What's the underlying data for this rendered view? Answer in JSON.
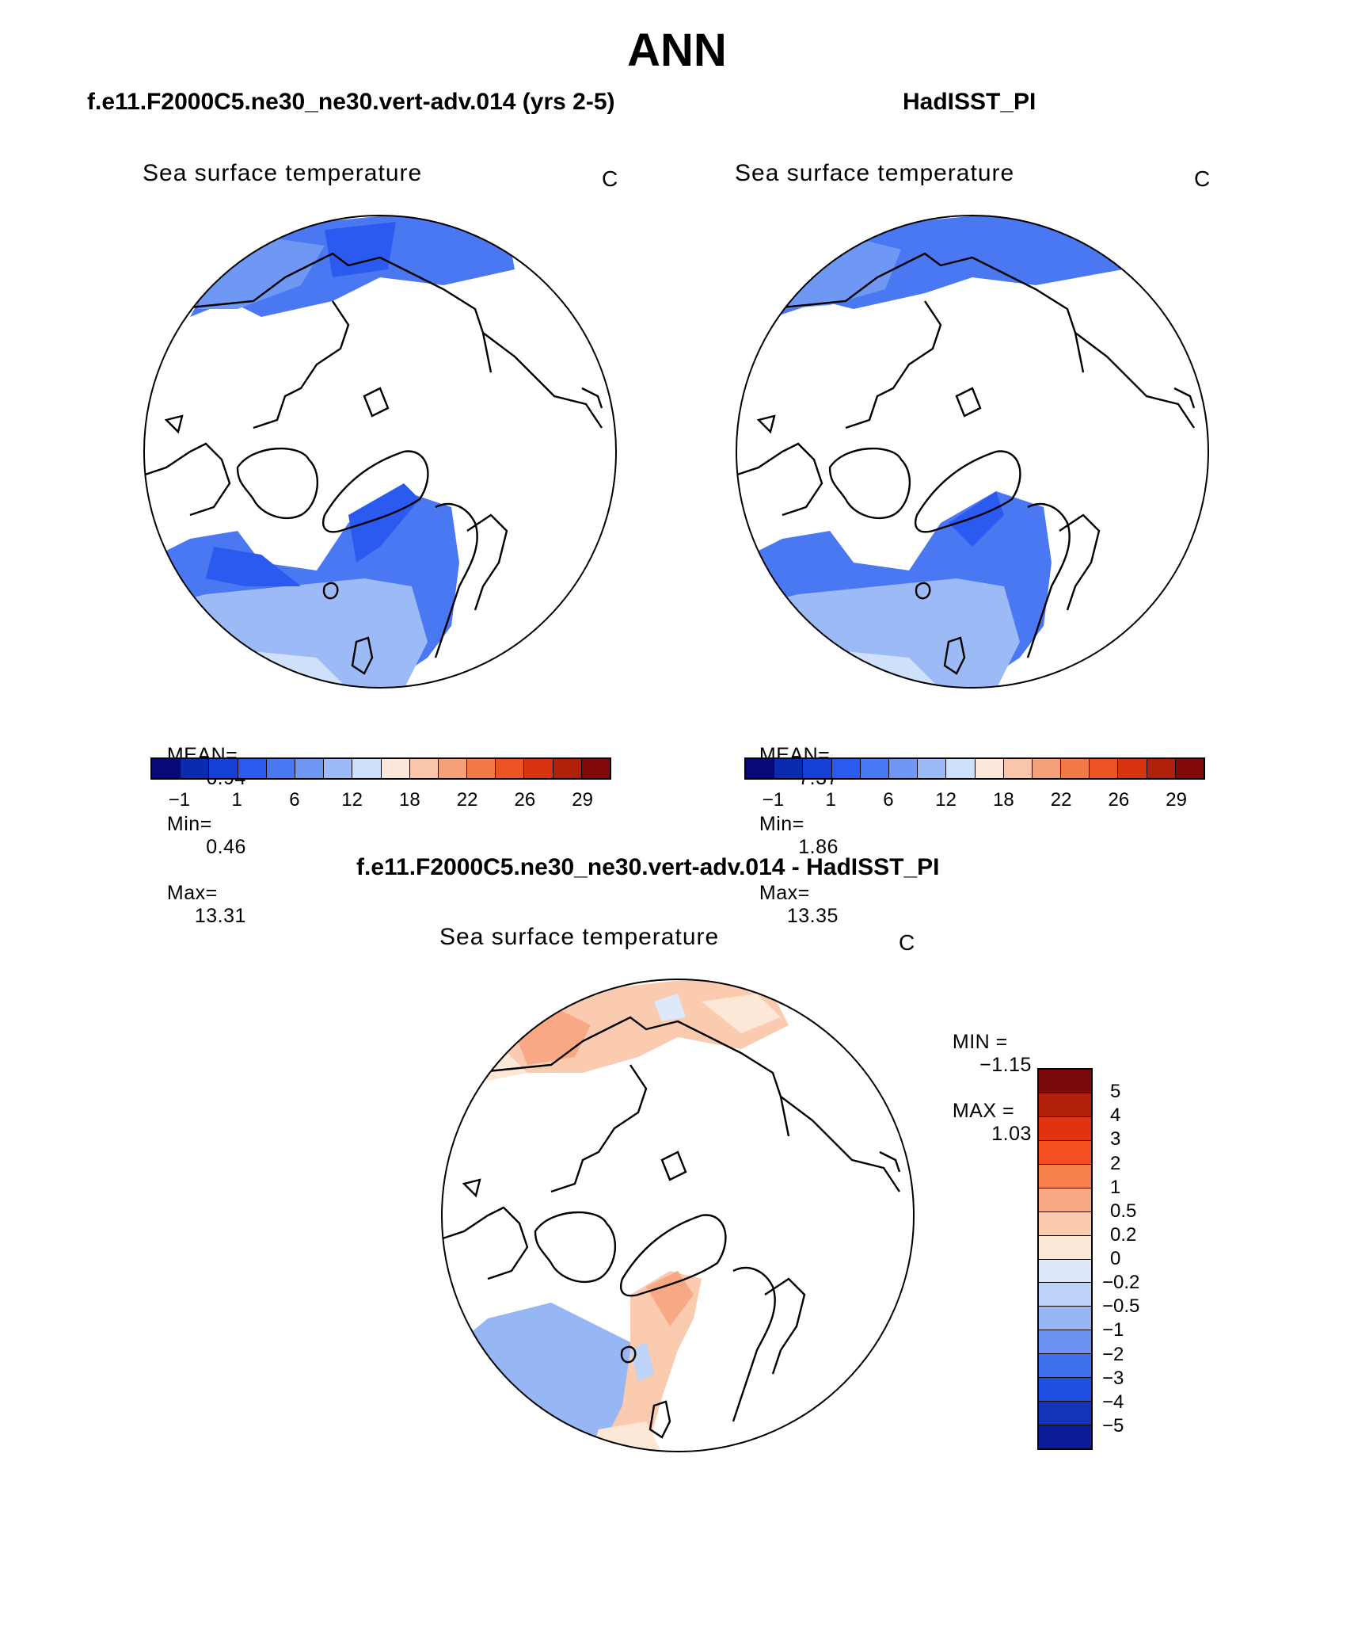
{
  "title": "ANN",
  "panels": [
    {
      "subtitle": "f.e11.F2000C5.ne30_ne30.vert-adv.014 (yrs 2-5)",
      "variable": "Sea surface temperature",
      "units": "C",
      "mean_label": "MEAN=",
      "mean": "6.94",
      "min_label": "Min=",
      "min": "0.46",
      "max_label": "Max=",
      "max": "13.31"
    },
    {
      "subtitle": "HadISST_PI",
      "variable": "Sea surface temperature",
      "units": "C",
      "mean_label": "MEAN=",
      "mean": "7.37",
      "min_label": "Min=",
      "min": "1.86",
      "max_label": "Max=",
      "max": "13.35"
    }
  ],
  "diff_panel": {
    "subtitle": "f.e11.F2000C5.ne30_ne30.vert-adv.014 - HadISST_PI",
    "variable": "Sea surface temperature",
    "units": "C",
    "min_label": "MIN =",
    "min": "−1.15",
    "max_label": "MAX =",
    "max": "1.03"
  },
  "abs_colorbar": {
    "colors": [
      "#08087a",
      "#0a2ab0",
      "#1440d8",
      "#2a5af0",
      "#4a78f2",
      "#6e98f4",
      "#9cbaf6",
      "#cfe0fa",
      "#fde8dc",
      "#f9c6ac",
      "#f6a07a",
      "#f37a48",
      "#ec5424",
      "#d83410",
      "#b0200a",
      "#820a0a"
    ],
    "tick_labels": [
      "−1",
      "1",
      "6",
      "12",
      "18",
      "22",
      "26",
      "29"
    ]
  },
  "diff_colorbar": {
    "colors": [
      "#7a0a0a",
      "#b22008",
      "#e03410",
      "#f35022",
      "#f6804a",
      "#f8a884",
      "#fbcbb0",
      "#fde8d8",
      "#dde9fb",
      "#bed3f8",
      "#96b6f4",
      "#6a94f0",
      "#3e70ec",
      "#2050e0",
      "#1234b8",
      "#0a1c98"
    ],
    "tick_labels": [
      "5",
      "4",
      "3",
      "2",
      "1",
      "0.5",
      "0.2",
      "0",
      "−0.2",
      "−0.5",
      "−1",
      "−2",
      "−3",
      "−4",
      "−5"
    ]
  },
  "icons": {
    "maps": [
      "polar-stereographic-map",
      "polar-stereographic-map",
      "polar-stereographic-difference-map"
    ]
  }
}
